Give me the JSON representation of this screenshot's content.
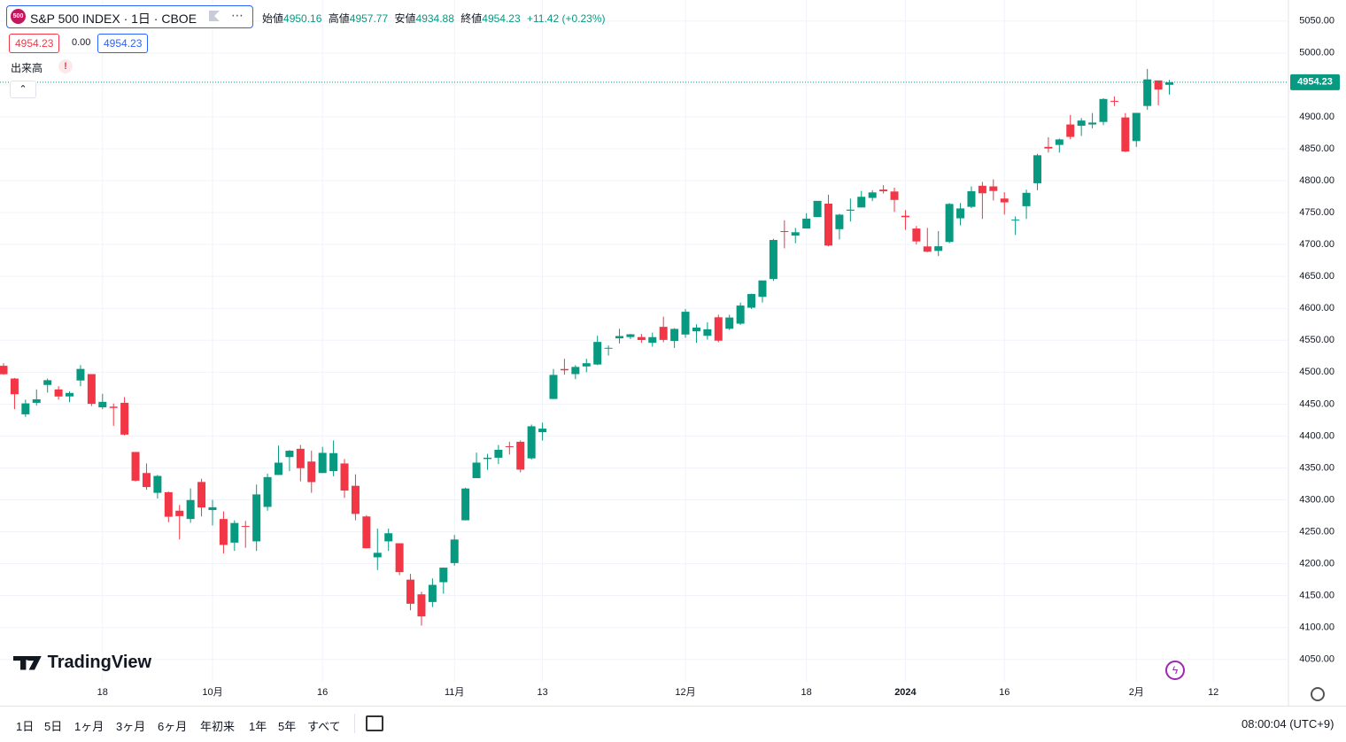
{
  "header": {
    "icon": "500",
    "symbol": "S&P 500 INDEX · 1日 · CBOE",
    "ohlc_labels": [
      "始値",
      "高値",
      "安値",
      "終値"
    ],
    "change": "+11.42 (+0.23%)",
    "bid": "4954.23",
    "spread": "0.00",
    "ask": "4954.23",
    "volume_label": "出来高",
    "volume_warning": "!"
  },
  "logo": "TradingView",
  "toolbar": {
    "ranges": [
      "1日",
      "5日",
      "1ヶ月",
      "3ヶ月",
      "6ヶ月",
      "年初来",
      "1年",
      "5年",
      "すべて"
    ],
    "clock": "08:00:04 (UTC+9)"
  },
  "chart_data": {
    "type": "candlestick",
    "up_color": "#089981",
    "down_color": "#f23645",
    "grid": true,
    "categories": [
      null,
      null,
      null,
      null,
      null,
      null,
      null,
      null,
      null,
      "18",
      null,
      null,
      null,
      null,
      null,
      null,
      null,
      null,
      null,
      "10月",
      null,
      null,
      null,
      null,
      null,
      null,
      null,
      null,
      null,
      "16",
      null,
      null,
      null,
      null,
      null,
      null,
      null,
      null,
      null,
      null,
      null,
      "11月",
      null,
      null,
      null,
      null,
      null,
      null,
      null,
      "13",
      null,
      null,
      null,
      null,
      null,
      null,
      null,
      null,
      null,
      null,
      null,
      null,
      "12月",
      null,
      null,
      null,
      null,
      null,
      null,
      null,
      null,
      null,
      null,
      "18",
      null,
      null,
      null,
      null,
      null,
      null,
      null,
      null,
      "2024",
      null,
      null,
      null,
      null,
      null,
      null,
      null,
      null,
      "16",
      null,
      null,
      null,
      null,
      null,
      null,
      null,
      null,
      null,
      null,
      null,
      "2月",
      null,
      null,
      null,
      null,
      null,
      null,
      "12"
    ],
    "open": [
      4510,
      4490,
      4434,
      4452,
      4480,
      4473,
      4462,
      4487,
      4497,
      4445,
      4446,
      4452,
      4375,
      4342,
      4311,
      4312,
      4283,
      4270,
      4328,
      4284,
      4270,
      4233,
      4259,
      4235,
      4289,
      4339,
      4367,
      4380,
      4360,
      4342,
      4345,
      4357,
      4322,
      4274,
      4210,
      4235,
      4232,
      4175,
      4152,
      4140,
      4171,
      4201,
      4268,
      4334,
      4364,
      4366,
      4384,
      4391,
      4365,
      4406,
      4458,
      4505,
      4497,
      4509,
      4512,
      4538,
      4553,
      4555,
      4555,
      4546,
      4571,
      4549,
      4559,
      4564,
      4557,
      4586,
      4568,
      4576,
      4601,
      4618,
      4646,
      4721,
      4714,
      4725,
      4743,
      4764,
      4724,
      4753,
      4758,
      4773,
      4786,
      4783,
      4745,
      4725,
      4697,
      4690,
      4704,
      4741,
      4759,
      4792,
      4791,
      4772,
      4739,
      4760,
      4796,
      4853,
      4856,
      4888,
      4886,
      4888,
      4892,
      4925,
      4899,
      4862,
      4917,
      4957,
      4950.16,
      null,
      null,
      null,
      null
    ],
    "high": [
      4514,
      4491,
      4457,
      4473,
      4490,
      4478,
      4470,
      4511,
      4497,
      4466,
      4451,
      4461,
      4375,
      4357,
      4339,
      4313,
      4292,
      4318,
      4333,
      4300,
      4282,
      4268,
      4267,
      4324,
      4341,
      4385,
      4378,
      4386,
      4377,
      4383,
      4393,
      4364,
      4340,
      4276,
      4255,
      4255,
      4232,
      4184,
      4156,
      4177,
      4194,
      4245,
      4319,
      4374,
      4372,
      4386,
      4391,
      4393,
      4418,
      4421,
      4505,
      4521,
      4511,
      4521,
      4557,
      4542,
      4568,
      4560,
      4560,
      4562,
      4587,
      4569,
      4599,
      4575,
      4578,
      4590,
      4590,
      4609,
      4623,
      4643,
      4709,
      4738,
      4726,
      4749,
      4768,
      4778,
      4748,
      4772,
      4784,
      4785,
      4793,
      4789,
      4754,
      4729,
      4726,
      4721,
      4765,
      4765,
      4791,
      4798,
      4802,
      4782,
      4744,
      4786,
      4842,
      4868,
      4866,
      4903,
      4898,
      4906,
      4929,
      4932,
      4906,
      4906,
      4975,
      4957,
      4957.77,
      null,
      null,
      null,
      null
    ],
    "low": [
      4496,
      4442,
      4430,
      4448,
      4468,
      4457,
      4453,
      4478,
      4447,
      4442,
      4416,
      4401,
      4329,
      4316,
      4302,
      4265,
      4238,
      4264,
      4274,
      4260,
      4216,
      4220,
      4225,
      4220,
      4283,
      4339,
      4345,
      4329,
      4311,
      4342,
      4337,
      4303,
      4268,
      4224,
      4190,
      4220,
      4182,
      4127,
      4103,
      4132,
      4153,
      4197,
      4268,
      4334,
      4347,
      4356,
      4371,
      4343,
      4363,
      4393,
      4458,
      4496,
      4489,
      4500,
      4511,
      4526,
      4545,
      4552,
      4546,
      4540,
      4547,
      4538,
      4554,
      4546,
      4551,
      4547,
      4566,
      4574,
      4599,
      4609,
      4643,
      4694,
      4702,
      4725,
      4743,
      4697,
      4708,
      4736,
      4758,
      4768,
      4780,
      4751,
      4723,
      4700,
      4688,
      4682,
      4702,
      4730,
      4757,
      4740,
      4769,
      4747,
      4715,
      4740,
      4785,
      4844,
      4844,
      4865,
      4870,
      4882,
      4887,
      4917,
      4845,
      4853,
      4911,
      4918,
      4934.88,
      null,
      null,
      null,
      null
    ],
    "close": [
      4496.83,
      4465.48,
      4451.14,
      4457.49,
      4487.46,
      4461.9,
      4467.44,
      4505.1,
      4450.32,
      4453.53,
      4443.95,
      4402.2,
      4330,
      4320.06,
      4337.44,
      4273.53,
      4274.51,
      4299.7,
      4288.05,
      4288.39,
      4229.45,
      4263.75,
      4258.19,
      4308.5,
      4335.66,
      4358.24,
      4376.95,
      4349.61,
      4327.78,
      4373.63,
      4373.2,
      4314.6,
      4278,
      4224.16,
      4217.04,
      4247.68,
      4186.77,
      4137.23,
      4117.37,
      4166.82,
      4193.8,
      4237.86,
      4317.78,
      4358.34,
      4365.98,
      4378.38,
      4382.78,
      4347.35,
      4415.24,
      4411.55,
      4495.7,
      4502.88,
      4508.24,
      4514.02,
      4547.38,
      4538.19,
      4556.62,
      4559.34,
      4550.43,
      4554.89,
      4550.58,
      4567.8,
      4594.63,
      4569.78,
      4567.18,
      4549.34,
      4585.59,
      4604.37,
      4622.44,
      4643.7,
      4707.09,
      4719.55,
      4719.19,
      4740.56,
      4768.37,
      4698.35,
      4746.75,
      4754.63,
      4774.75,
      4781.58,
      4783.35,
      4769.83,
      4742.83,
      4704.81,
      4688.68,
      4697.24,
      4763.54,
      4756.5,
      4783.45,
      4780.24,
      4783.83,
      4765.98,
      4739.21,
      4780.94,
      4839.81,
      4850.43,
      4864.6,
      4868.55,
      4894.16,
      4890.97,
      4927.93,
      4924.97,
      4845.65,
      4906.19,
      4958.61,
      4942.81,
      4954.23,
      null,
      null,
      null,
      null
    ],
    "ylim": [
      4015,
      5083
    ],
    "yticks": [
      {
        "value": 4050,
        "label": "4050.00"
      },
      {
        "value": 4100,
        "label": "4100.00"
      },
      {
        "value": 4150,
        "label": "4150.00"
      },
      {
        "value": 4200,
        "label": "4200.00"
      },
      {
        "value": 4250,
        "label": "4250.00"
      },
      {
        "value": 4300,
        "label": "4300.00"
      },
      {
        "value": 4350,
        "label": "4350.00"
      },
      {
        "value": 4400,
        "label": "4400.00"
      },
      {
        "value": 4450,
        "label": "4450.00"
      },
      {
        "value": 4500,
        "label": "4500.00"
      },
      {
        "value": 4550,
        "label": "4550.00"
      },
      {
        "value": 4600,
        "label": "4600.00"
      },
      {
        "value": 4650,
        "label": "4650.00"
      },
      {
        "value": 4700,
        "label": "4700.00"
      },
      {
        "value": 4750,
        "label": "4750.00"
      },
      {
        "value": 4800,
        "label": "4800.00"
      },
      {
        "value": 4850,
        "label": "4850.00"
      },
      {
        "value": 4900,
        "label": "4900.00"
      },
      {
        "value": 4950,
        "label": "4950.00"
      },
      {
        "value": 5000,
        "label": "5000.00"
      },
      {
        "value": 5050,
        "label": "5050.00"
      }
    ]
  }
}
